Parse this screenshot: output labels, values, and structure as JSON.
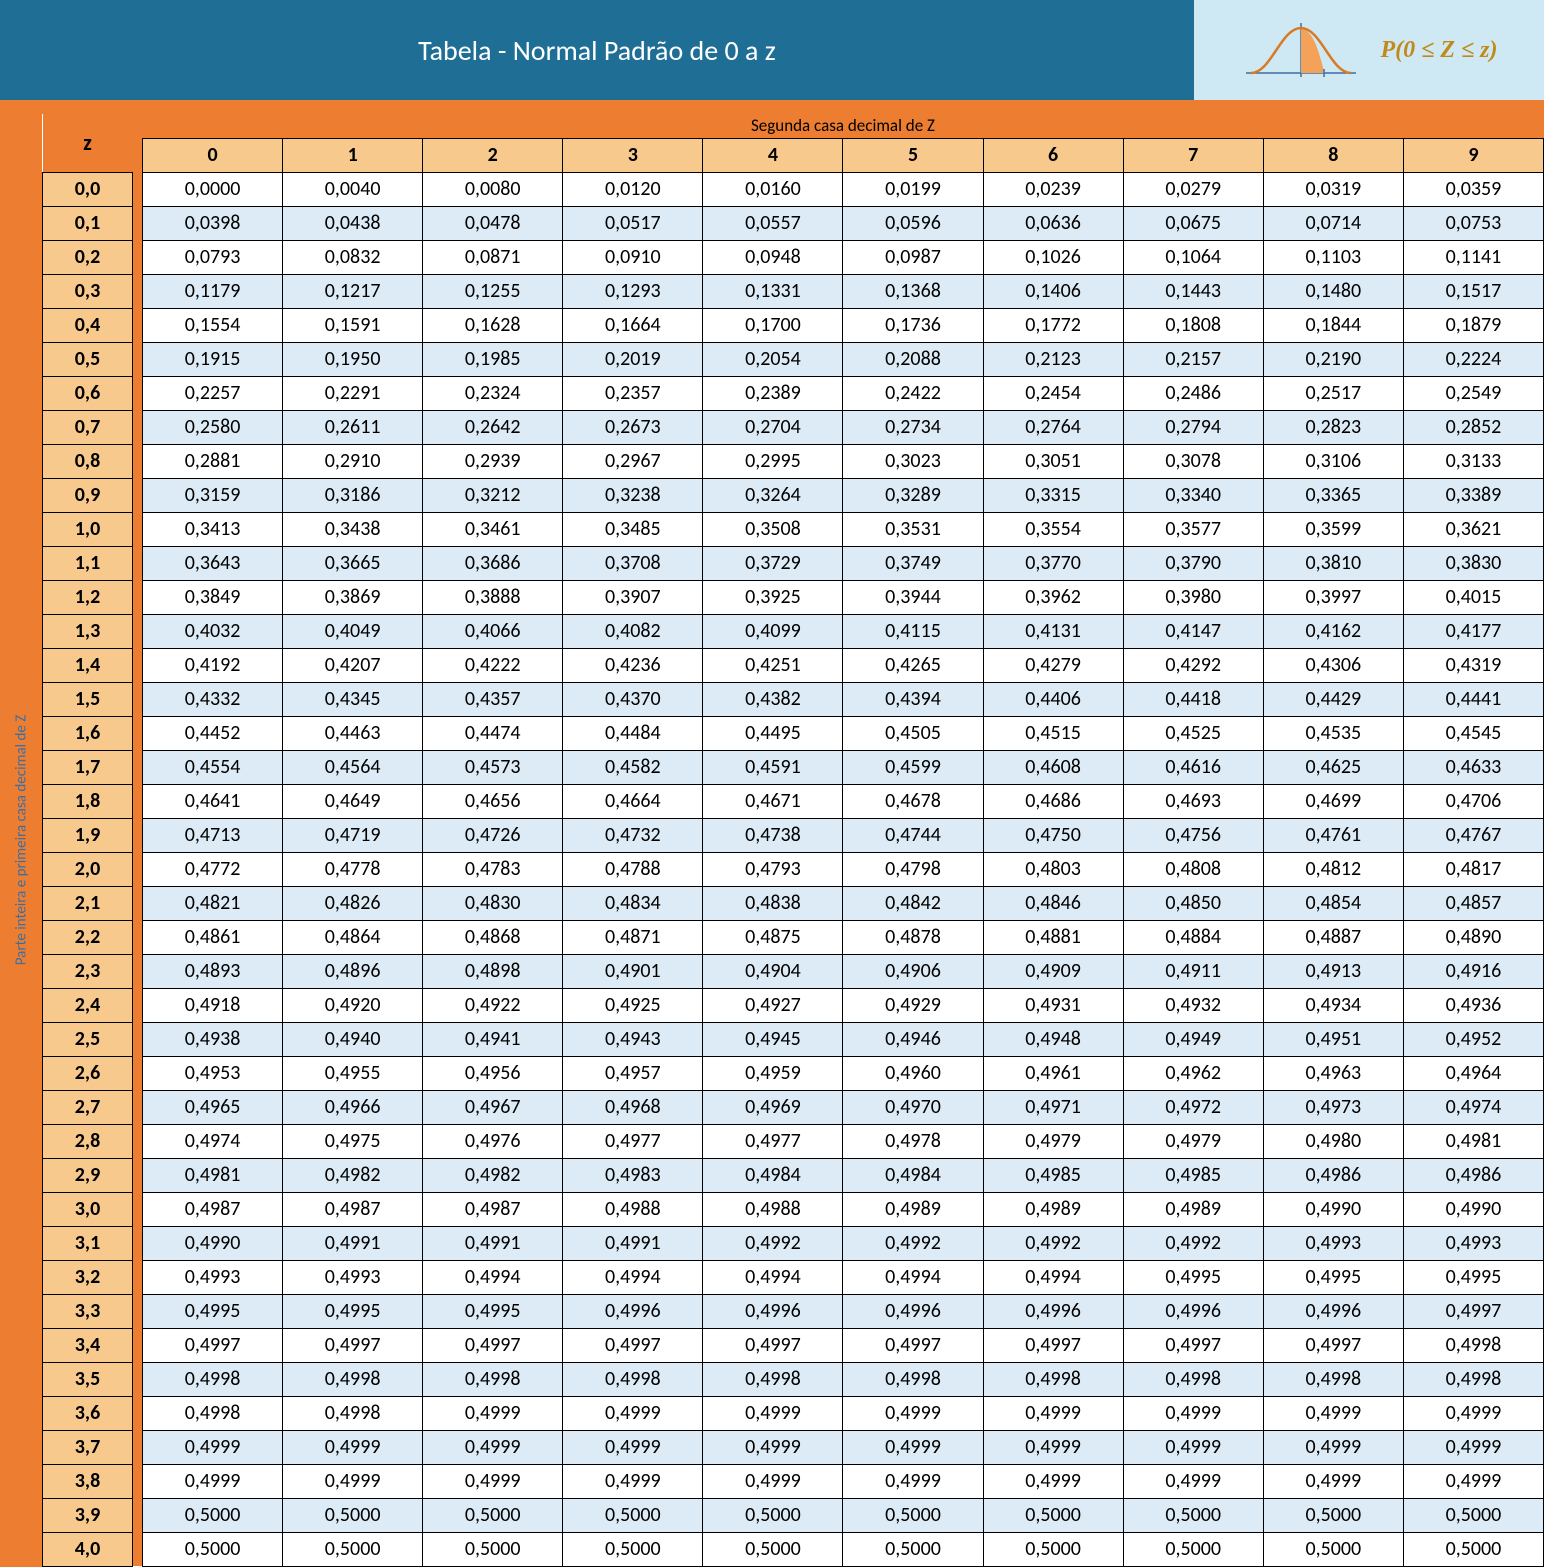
{
  "colors": {
    "banner_bg": "#1e6e95",
    "banner_right_bg": "#cfe9f4",
    "accent_orange": "#ed7d31",
    "formula_color": "#c08a1a",
    "curve_stroke": "#d97a24",
    "curve_fill": "#f4a259",
    "axis_color": "#3b6fa3",
    "col_head_bg": "#f8c98d",
    "row_head_bg": "#f8c98d",
    "row_alt_bg": "#dcebf5",
    "row_bg": "#ffffff",
    "left_rail_text": "#3b6fa3",
    "table_border": "#000000"
  },
  "banner": {
    "title": "Tabela - Normal Padrão de 0 a z",
    "formula": "P(0 ≤ Z ≤ z)"
  },
  "labels": {
    "z": "z",
    "top_note": "Segunda casa decimal de Z",
    "left_rail": "Parte inteira e primeira casa decimal de Z"
  },
  "table": {
    "type": "table",
    "columns": [
      "0",
      "1",
      "2",
      "3",
      "4",
      "5",
      "6",
      "7",
      "8",
      "9"
    ],
    "row_headers": [
      "0,0",
      "0,1",
      "0,2",
      "0,3",
      "0,4",
      "0,5",
      "0,6",
      "0,7",
      "0,8",
      "0,9",
      "1,0",
      "1,1",
      "1,2",
      "1,3",
      "1,4",
      "1,5",
      "1,6",
      "1,7",
      "1,8",
      "1,9",
      "2,0",
      "2,1",
      "2,2",
      "2,3",
      "2,4",
      "2,5",
      "2,6",
      "2,7",
      "2,8",
      "2,9",
      "3,0",
      "3,1",
      "3,2",
      "3,3",
      "3,4",
      "3,5",
      "3,6",
      "3,7",
      "3,8",
      "3,9",
      "4,0"
    ],
    "rows": [
      [
        "0,0000",
        "0,0040",
        "0,0080",
        "0,0120",
        "0,0160",
        "0,0199",
        "0,0239",
        "0,0279",
        "0,0319",
        "0,0359"
      ],
      [
        "0,0398",
        "0,0438",
        "0,0478",
        "0,0517",
        "0,0557",
        "0,0596",
        "0,0636",
        "0,0675",
        "0,0714",
        "0,0753"
      ],
      [
        "0,0793",
        "0,0832",
        "0,0871",
        "0,0910",
        "0,0948",
        "0,0987",
        "0,1026",
        "0,1064",
        "0,1103",
        "0,1141"
      ],
      [
        "0,1179",
        "0,1217",
        "0,1255",
        "0,1293",
        "0,1331",
        "0,1368",
        "0,1406",
        "0,1443",
        "0,1480",
        "0,1517"
      ],
      [
        "0,1554",
        "0,1591",
        "0,1628",
        "0,1664",
        "0,1700",
        "0,1736",
        "0,1772",
        "0,1808",
        "0,1844",
        "0,1879"
      ],
      [
        "0,1915",
        "0,1950",
        "0,1985",
        "0,2019",
        "0,2054",
        "0,2088",
        "0,2123",
        "0,2157",
        "0,2190",
        "0,2224"
      ],
      [
        "0,2257",
        "0,2291",
        "0,2324",
        "0,2357",
        "0,2389",
        "0,2422",
        "0,2454",
        "0,2486",
        "0,2517",
        "0,2549"
      ],
      [
        "0,2580",
        "0,2611",
        "0,2642",
        "0,2673",
        "0,2704",
        "0,2734",
        "0,2764",
        "0,2794",
        "0,2823",
        "0,2852"
      ],
      [
        "0,2881",
        "0,2910",
        "0,2939",
        "0,2967",
        "0,2995",
        "0,3023",
        "0,3051",
        "0,3078",
        "0,3106",
        "0,3133"
      ],
      [
        "0,3159",
        "0,3186",
        "0,3212",
        "0,3238",
        "0,3264",
        "0,3289",
        "0,3315",
        "0,3340",
        "0,3365",
        "0,3389"
      ],
      [
        "0,3413",
        "0,3438",
        "0,3461",
        "0,3485",
        "0,3508",
        "0,3531",
        "0,3554",
        "0,3577",
        "0,3599",
        "0,3621"
      ],
      [
        "0,3643",
        "0,3665",
        "0,3686",
        "0,3708",
        "0,3729",
        "0,3749",
        "0,3770",
        "0,3790",
        "0,3810",
        "0,3830"
      ],
      [
        "0,3849",
        "0,3869",
        "0,3888",
        "0,3907",
        "0,3925",
        "0,3944",
        "0,3962",
        "0,3980",
        "0,3997",
        "0,4015"
      ],
      [
        "0,4032",
        "0,4049",
        "0,4066",
        "0,4082",
        "0,4099",
        "0,4115",
        "0,4131",
        "0,4147",
        "0,4162",
        "0,4177"
      ],
      [
        "0,4192",
        "0,4207",
        "0,4222",
        "0,4236",
        "0,4251",
        "0,4265",
        "0,4279",
        "0,4292",
        "0,4306",
        "0,4319"
      ],
      [
        "0,4332",
        "0,4345",
        "0,4357",
        "0,4370",
        "0,4382",
        "0,4394",
        "0,4406",
        "0,4418",
        "0,4429",
        "0,4441"
      ],
      [
        "0,4452",
        "0,4463",
        "0,4474",
        "0,4484",
        "0,4495",
        "0,4505",
        "0,4515",
        "0,4525",
        "0,4535",
        "0,4545"
      ],
      [
        "0,4554",
        "0,4564",
        "0,4573",
        "0,4582",
        "0,4591",
        "0,4599",
        "0,4608",
        "0,4616",
        "0,4625",
        "0,4633"
      ],
      [
        "0,4641",
        "0,4649",
        "0,4656",
        "0,4664",
        "0,4671",
        "0,4678",
        "0,4686",
        "0,4693",
        "0,4699",
        "0,4706"
      ],
      [
        "0,4713",
        "0,4719",
        "0,4726",
        "0,4732",
        "0,4738",
        "0,4744",
        "0,4750",
        "0,4756",
        "0,4761",
        "0,4767"
      ],
      [
        "0,4772",
        "0,4778",
        "0,4783",
        "0,4788",
        "0,4793",
        "0,4798",
        "0,4803",
        "0,4808",
        "0,4812",
        "0,4817"
      ],
      [
        "0,4821",
        "0,4826",
        "0,4830",
        "0,4834",
        "0,4838",
        "0,4842",
        "0,4846",
        "0,4850",
        "0,4854",
        "0,4857"
      ],
      [
        "0,4861",
        "0,4864",
        "0,4868",
        "0,4871",
        "0,4875",
        "0,4878",
        "0,4881",
        "0,4884",
        "0,4887",
        "0,4890"
      ],
      [
        "0,4893",
        "0,4896",
        "0,4898",
        "0,4901",
        "0,4904",
        "0,4906",
        "0,4909",
        "0,4911",
        "0,4913",
        "0,4916"
      ],
      [
        "0,4918",
        "0,4920",
        "0,4922",
        "0,4925",
        "0,4927",
        "0,4929",
        "0,4931",
        "0,4932",
        "0,4934",
        "0,4936"
      ],
      [
        "0,4938",
        "0,4940",
        "0,4941",
        "0,4943",
        "0,4945",
        "0,4946",
        "0,4948",
        "0,4949",
        "0,4951",
        "0,4952"
      ],
      [
        "0,4953",
        "0,4955",
        "0,4956",
        "0,4957",
        "0,4959",
        "0,4960",
        "0,4961",
        "0,4962",
        "0,4963",
        "0,4964"
      ],
      [
        "0,4965",
        "0,4966",
        "0,4967",
        "0,4968",
        "0,4969",
        "0,4970",
        "0,4971",
        "0,4972",
        "0,4973",
        "0,4974"
      ],
      [
        "0,4974",
        "0,4975",
        "0,4976",
        "0,4977",
        "0,4977",
        "0,4978",
        "0,4979",
        "0,4979",
        "0,4980",
        "0,4981"
      ],
      [
        "0,4981",
        "0,4982",
        "0,4982",
        "0,4983",
        "0,4984",
        "0,4984",
        "0,4985",
        "0,4985",
        "0,4986",
        "0,4986"
      ],
      [
        "0,4987",
        "0,4987",
        "0,4987",
        "0,4988",
        "0,4988",
        "0,4989",
        "0,4989",
        "0,4989",
        "0,4990",
        "0,4990"
      ],
      [
        "0,4990",
        "0,4991",
        "0,4991",
        "0,4991",
        "0,4992",
        "0,4992",
        "0,4992",
        "0,4992",
        "0,4993",
        "0,4993"
      ],
      [
        "0,4993",
        "0,4993",
        "0,4994",
        "0,4994",
        "0,4994",
        "0,4994",
        "0,4994",
        "0,4995",
        "0,4995",
        "0,4995"
      ],
      [
        "0,4995",
        "0,4995",
        "0,4995",
        "0,4996",
        "0,4996",
        "0,4996",
        "0,4996",
        "0,4996",
        "0,4996",
        "0,4997"
      ],
      [
        "0,4997",
        "0,4997",
        "0,4997",
        "0,4997",
        "0,4997",
        "0,4997",
        "0,4997",
        "0,4997",
        "0,4997",
        "0,4998"
      ],
      [
        "0,4998",
        "0,4998",
        "0,4998",
        "0,4998",
        "0,4998",
        "0,4998",
        "0,4998",
        "0,4998",
        "0,4998",
        "0,4998"
      ],
      [
        "0,4998",
        "0,4998",
        "0,4999",
        "0,4999",
        "0,4999",
        "0,4999",
        "0,4999",
        "0,4999",
        "0,4999",
        "0,4999"
      ],
      [
        "0,4999",
        "0,4999",
        "0,4999",
        "0,4999",
        "0,4999",
        "0,4999",
        "0,4999",
        "0,4999",
        "0,4999",
        "0,4999"
      ],
      [
        "0,4999",
        "0,4999",
        "0,4999",
        "0,4999",
        "0,4999",
        "0,4999",
        "0,4999",
        "0,4999",
        "0,4999",
        "0,4999"
      ],
      [
        "0,5000",
        "0,5000",
        "0,5000",
        "0,5000",
        "0,5000",
        "0,5000",
        "0,5000",
        "0,5000",
        "0,5000",
        "0,5000"
      ],
      [
        "0,5000",
        "0,5000",
        "0,5000",
        "0,5000",
        "0,5000",
        "0,5000",
        "0,5000",
        "0,5000",
        "0,5000",
        "0,5000"
      ]
    ]
  }
}
